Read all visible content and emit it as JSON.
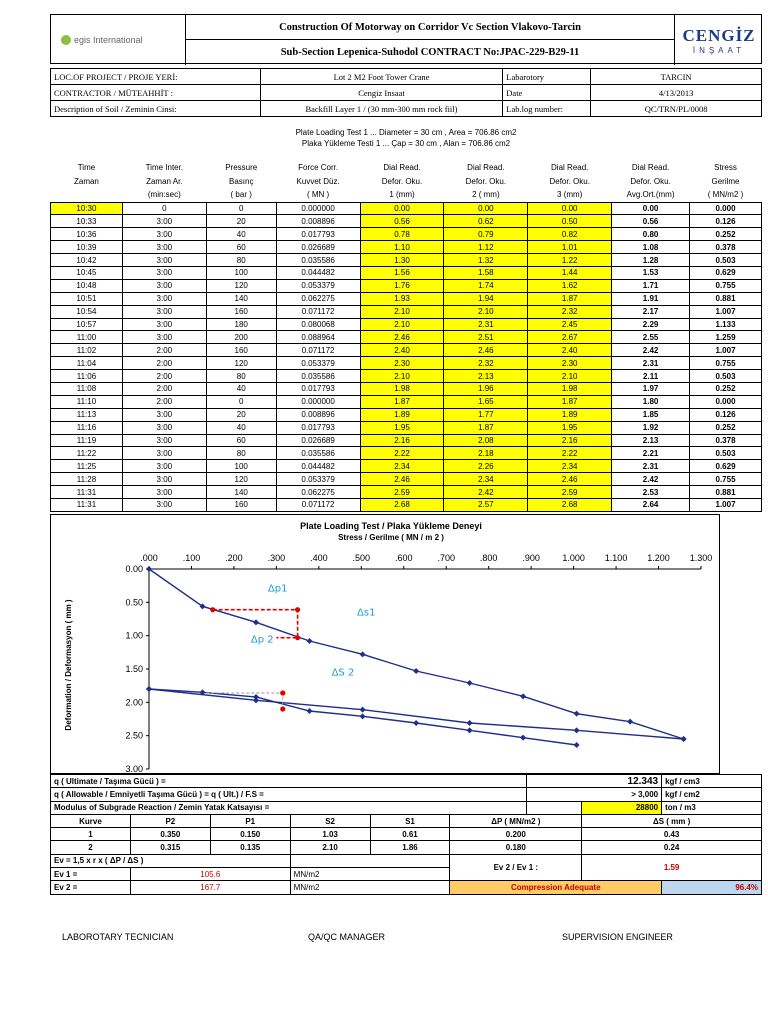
{
  "header": {
    "left_logo": "egis International",
    "title1": "Construction Of Motorway on Corridor Vc Section Vlakovo-Tarcin",
    "title2": "Sub-Section Lepenica-Suhodol CONTRACT No:JPAC-229-B29-11",
    "right_logo_main": "CENGİZ",
    "right_logo_sub": "İNŞAAT"
  },
  "info": {
    "loc_label": "LOC.OF PROJECT / PROJE YERİ:",
    "loc_value": "Lot 2  M2 Foot Tower Crane",
    "lab_label": "Labarotory",
    "lab_value": "TARCIN",
    "contractor_label": "CONTRACTOR / MÜTEAHHİT :",
    "contractor_value": "Cengiz Insaat",
    "date_label": "Date",
    "date_value": "4/13/2013",
    "desc_label": "Description of Soil / Zeminin Cinsi:",
    "desc_value": "Backfill Layer 1 / (30 mm-300 mm rock fiil)",
    "log_label": "Lab.log number:",
    "log_value": "QC/TRN/PL/0008"
  },
  "subtitle1": "Plate Loading Test 1 ... Diameter = 30 cm , Area = 706.86 cm2",
  "subtitle2": "Plaka Yükleme Testi 1 ... Çap = 30 cm , Alan = 706.86 cm2",
  "table": {
    "headers": [
      [
        "Time",
        "Time Inter.",
        "Pressure",
        "Force Corr.",
        "Dial Read.",
        "Dial Read.",
        "Dial Read.",
        "Dial Read.",
        "Stress"
      ],
      [
        "Zaman",
        "Zaman Ar.",
        "Basınç",
        "Kuvvet Düz.",
        "Defor. Oku.",
        "Defor. Oku.",
        "Defor. Oku.",
        "Defor. Oku.",
        "Gerilme"
      ],
      [
        "",
        "(min:sec)",
        "( bar )",
        "( MN )",
        "1 (mm)",
        "2 ( mm)",
        "3 (mm)",
        "Avg.Ort.(mm)",
        "( MN/m2 )"
      ]
    ],
    "rows": [
      [
        "10:30",
        "0",
        "0",
        "0.000000",
        "0.00",
        "0.00",
        "0.00",
        "0.00",
        "0.000"
      ],
      [
        "10:33",
        "3:00",
        "20",
        "0.008896",
        "0.56",
        "0.62",
        "0.50",
        "0.56",
        "0.126"
      ],
      [
        "10:36",
        "3:00",
        "40",
        "0.017793",
        "0.78",
        "0.79",
        "0.82",
        "0.80",
        "0.252"
      ],
      [
        "10:39",
        "3:00",
        "60",
        "0.026689",
        "1.10",
        "1.12",
        "1.01",
        "1.08",
        "0.378"
      ],
      [
        "10:42",
        "3:00",
        "80",
        "0.035586",
        "1.30",
        "1.32",
        "1.22",
        "1.28",
        "0.503"
      ],
      [
        "10:45",
        "3:00",
        "100",
        "0.044482",
        "1.56",
        "1.58",
        "1.44",
        "1.53",
        "0.629"
      ],
      [
        "10:48",
        "3:00",
        "120",
        "0.053379",
        "1.76",
        "1.74",
        "1.62",
        "1.71",
        "0.755"
      ],
      [
        "10:51",
        "3:00",
        "140",
        "0.062275",
        "1.93",
        "1.94",
        "1.87",
        "1.91",
        "0.881"
      ],
      [
        "10:54",
        "3:00",
        "160",
        "0.071172",
        "2.10",
        "2.10",
        "2.32",
        "2.17",
        "1.007"
      ],
      [
        "10:57",
        "3:00",
        "180",
        "0.080068",
        "2.10",
        "2.31",
        "2.45",
        "2.29",
        "1.133"
      ],
      [
        "11:00",
        "3:00",
        "200",
        "0.088964",
        "2.46",
        "2.51",
        "2.67",
        "2.55",
        "1.259"
      ],
      [
        "11:02",
        "2:00",
        "160",
        "0.071172",
        "2.40",
        "2.46",
        "2.40",
        "2.42",
        "1.007"
      ],
      [
        "11:04",
        "2:00",
        "120",
        "0.053379",
        "2.30",
        "2.32",
        "2.30",
        "2.31",
        "0.755"
      ],
      [
        "11:06",
        "2:00",
        "80",
        "0.035586",
        "2.10",
        "2.13",
        "2.10",
        "2.11",
        "0.503"
      ],
      [
        "11:08",
        "2:00",
        "40",
        "0.017793",
        "1.98",
        "1.96",
        "1.98",
        "1.97",
        "0.252"
      ],
      [
        "11:10",
        "2:00",
        "0",
        "0.000000",
        "1.87",
        "1.65",
        "1.87",
        "1.80",
        "0.000"
      ],
      [
        "11:13",
        "3:00",
        "20",
        "0.008896",
        "1.89",
        "1.77",
        "1.89",
        "1.85",
        "0.126"
      ],
      [
        "11:16",
        "3:00",
        "40",
        "0.017793",
        "1.95",
        "1.87",
        "1.95",
        "1.92",
        "0.252"
      ],
      [
        "11:19",
        "3:00",
        "60",
        "0.026689",
        "2.16",
        "2.08",
        "2.16",
        "2.13",
        "0.378"
      ],
      [
        "11:22",
        "3:00",
        "80",
        "0.035586",
        "2.22",
        "2.18",
        "2.22",
        "2.21",
        "0.503"
      ],
      [
        "11:25",
        "3:00",
        "100",
        "0.044482",
        "2.34",
        "2.26",
        "2.34",
        "2.31",
        "0.629"
      ],
      [
        "11:28",
        "3:00",
        "120",
        "0.053379",
        "2.46",
        "2.34",
        "2.46",
        "2.42",
        "0.755"
      ],
      [
        "11:31",
        "3:00",
        "140",
        "0.062275",
        "2.59",
        "2.42",
        "2.59",
        "2.53",
        "0.881"
      ],
      [
        "11:31",
        "3:00",
        "160",
        "0.071172",
        "2.68",
        "2.57",
        "2.68",
        "2.64",
        "1.007"
      ]
    ]
  },
  "chart_data": {
    "type": "line",
    "title": "Plate Loading Test / Plaka Yükleme Deneyi",
    "subtitle": "Stress / Gerilme  ( MN  / m 2 )",
    "xlabel": "",
    "ylabel": "Deformation / Deformasyon ( mm )",
    "xlim": [
      0,
      1.3
    ],
    "ylim": [
      0,
      3
    ],
    "y_inverted": true,
    "x_ticks": [
      ".000",
      ".100",
      ".200",
      ".300",
      ".400",
      ".500",
      ".600",
      ".700",
      ".800",
      ".900",
      "1.000",
      "1.100",
      "1.200",
      "1.300"
    ],
    "y_ticks": [
      "0.00",
      "0.50",
      "1.00",
      "1.50",
      "2.00",
      "2.50",
      "3.00"
    ],
    "series": [
      {
        "x": [
          0,
          0.126,
          0.252,
          0.378,
          0.503,
          0.629,
          0.755,
          0.881,
          1.007,
          1.133,
          1.259
        ],
        "y": [
          0,
          0.56,
          0.8,
          1.08,
          1.28,
          1.53,
          1.71,
          1.91,
          2.17,
          2.29,
          2.55
        ]
      },
      {
        "x": [
          1.259,
          1.007,
          0.755,
          0.503,
          0.252,
          0
        ],
        "y": [
          2.55,
          2.42,
          2.31,
          2.11,
          1.97,
          1.8
        ]
      },
      {
        "x": [
          0,
          0.126,
          0.252,
          0.378,
          0.503,
          0.629,
          0.755,
          0.881,
          1.007
        ],
        "y": [
          1.8,
          1.85,
          1.92,
          2.13,
          2.21,
          2.31,
          2.42,
          2.53,
          2.64
        ]
      }
    ],
    "annotations": [
      "Δp1",
      "Δs1",
      "Δp 2",
      "ΔS 2"
    ],
    "colors": {
      "line": "#1f2d8c",
      "annotation": "#1b9bd6",
      "marker": "#e00000"
    }
  },
  "summary": {
    "q_ult_label": "q ( Ultimate / Taşıma Gücü )  =",
    "q_ult_value": "12.343",
    "q_ult_unit": "kgf / cm3",
    "q_allow_label": "q ( Allowable / Emniyetli Taşıma Gücü ) = q ( Ult.) / F.S =",
    "q_allow_value": "> 3,000",
    "q_allow_unit": "kgf / cm2",
    "modulus_label": "Modulus of Subgrade Reaction / Zemin Yatak Katsayısı =",
    "modulus_value": "28800",
    "modulus_unit": "ton / m3",
    "col_headers": [
      "Kurve",
      "P2",
      "P1",
      "S2",
      "S1",
      "ΔP ( MN/m2 )",
      "ΔS ( mm )"
    ],
    "rows": [
      [
        "1",
        "0.350",
        "0.150",
        "1.03",
        "0.61",
        "0.200",
        "0.43"
      ],
      [
        "2",
        "0.315",
        "0.135",
        "2.10",
        "1.86",
        "0.180",
        "0.24"
      ]
    ],
    "formula": "Ev = 1,5 x r x ( ΔP / ΔS )",
    "ev1_label": "Ev 1 =",
    "ev1_value": "105.6",
    "ev1_unit": "MN/m2",
    "ev2_label": "Ev 2 =",
    "ev2_value": "167.7",
    "ev2_unit": "MN/m2",
    "ratio_label": "Ev 2 / Ev 1 :",
    "ratio_value": "1.59",
    "status": "Compression Adequate",
    "percent": "96.4%"
  },
  "signatures": {
    "lab": "LABOROTARY TECNICIAN",
    "qa": "QA/QC MANAGER",
    "sup": "SUPERVISION ENGINEER"
  }
}
